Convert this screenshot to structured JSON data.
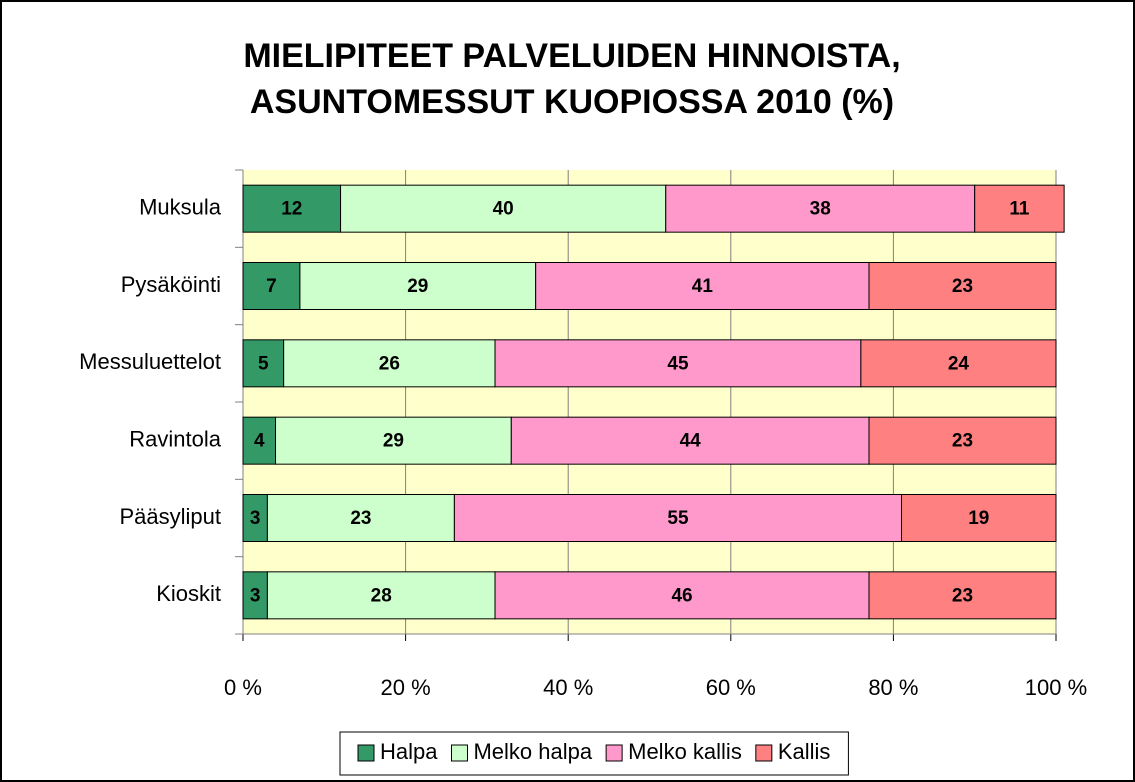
{
  "chart_data": {
    "type": "stacked_barh",
    "title": [
      "MIELIPITEET PALVELUIDEN HINNOISTA,",
      "ASUNTOMESSUT KUOPIOSSA 2010 (%)"
    ],
    "categories": [
      "Muksula",
      "Pysäköinti",
      "Messuluettelot",
      "Ravintola",
      "Pääsyliput",
      "Kioskit"
    ],
    "series": [
      {
        "name": "Halpa",
        "color": "#339966",
        "values": [
          12,
          7,
          5,
          4,
          3,
          3
        ]
      },
      {
        "name": "Melko halpa",
        "color": "#ccffcc",
        "values": [
          40,
          29,
          26,
          29,
          23,
          28
        ]
      },
      {
        "name": "Melko kallis",
        "color": "#ff99cc",
        "values": [
          38,
          41,
          45,
          44,
          55,
          46
        ]
      },
      {
        "name": "Kallis",
        "color": "#ff8080",
        "values": [
          11,
          23,
          24,
          23,
          19,
          23
        ]
      }
    ],
    "xlim": [
      0,
      100
    ],
    "xticks": [
      {
        "value": 0,
        "label": "0 %"
      },
      {
        "value": 20,
        "label": "20 %"
      },
      {
        "value": 40,
        "label": "40 %"
      },
      {
        "value": 60,
        "label": "60 %"
      },
      {
        "value": 80,
        "label": "80 %"
      },
      {
        "value": 100,
        "label": "100 %"
      }
    ],
    "grid": true,
    "legend": "bottom"
  }
}
